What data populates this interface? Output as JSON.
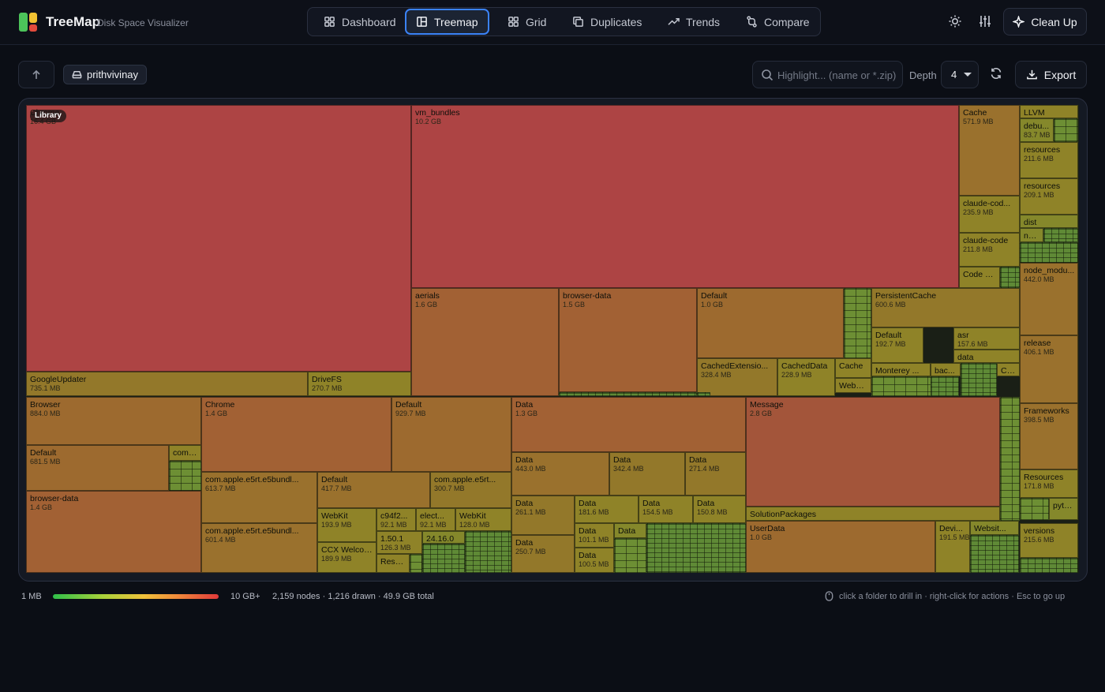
{
  "header": {
    "brand": "TreeMap",
    "subtitle": "Disk Space Visualizer",
    "nav": [
      {
        "label": "Dashboard",
        "icon": "dashboard-icon"
      },
      {
        "label": "Treemap",
        "icon": "treemap-icon",
        "active": true
      },
      {
        "label": "Grid",
        "icon": "grid-icon"
      },
      {
        "label": "Duplicates",
        "icon": "duplicates-icon"
      },
      {
        "label": "Trends",
        "icon": "trends-icon"
      },
      {
        "label": "Compare",
        "icon": "compare-icon"
      }
    ],
    "cleanup_label": "Clean Up"
  },
  "toolbar": {
    "breadcrumb": "prithvivinay",
    "search_placeholder": "Highlight... (name or *.zip)",
    "depth_label": "Depth",
    "depth_value": "4",
    "export_label": "Export"
  },
  "treemap": {
    "root_badge": "Library",
    "cells": [
      {
        "name": "Chrome",
        "size": "16.4 GB",
        "tone": "c-red"
      },
      {
        "name": "vm_bundles",
        "size": "10.2 GB",
        "tone": "c-red"
      },
      {
        "name": "GoogleUpdater",
        "size": "735.1 MB",
        "tone": "c-ol"
      },
      {
        "name": "DriveFS",
        "size": "270.7 MB",
        "tone": "c-ye"
      },
      {
        "name": "aerials",
        "size": "1.6 GB",
        "tone": "c-or"
      },
      {
        "name": "browser-data",
        "size": "1.5 GB",
        "tone": "c-or"
      },
      {
        "name": "Default",
        "size": "1.0 GB",
        "tone": "c-or2"
      },
      {
        "name": "PersistentCache",
        "size": "600.6 MB",
        "tone": "c-ol"
      },
      {
        "name": "Default",
        "size": "192.7 MB",
        "tone": "c-ye"
      },
      {
        "name": "asr",
        "size": "157.6 MB",
        "tone": "c-ye"
      },
      {
        "name": "data",
        "size": "",
        "tone": "c-ye"
      },
      {
        "name": "CachedExtensio...",
        "size": "328.4 MB",
        "tone": "c-ol"
      },
      {
        "name": "CachedData",
        "size": "228.9 MB",
        "tone": "c-ye"
      },
      {
        "name": "Cache",
        "size": "",
        "tone": "c-ye"
      },
      {
        "name": "WebSt...",
        "size": "",
        "tone": "c-ye"
      },
      {
        "name": "Monterey ...",
        "size": "",
        "tone": "c-ye"
      },
      {
        "name": "bac...",
        "size": "",
        "tone": "c-ye"
      },
      {
        "name": "Cache",
        "size": "",
        "tone": "c-ye"
      },
      {
        "name": "Cache",
        "size": "571.9 MB",
        "tone": "c-ob"
      },
      {
        "name": "claude-cod...",
        "size": "235.9 MB",
        "tone": "c-ye"
      },
      {
        "name": "claude-code",
        "size": "211.8 MB",
        "tone": "c-ye"
      },
      {
        "name": "Code C...",
        "size": "",
        "tone": "c-ye"
      },
      {
        "name": "LLVM",
        "size": "",
        "tone": "c-ye"
      },
      {
        "name": "debu...",
        "size": "83.7 MB",
        "tone": "c-yg"
      },
      {
        "name": "resources",
        "size": "211.6 MB",
        "tone": "c-ye"
      },
      {
        "name": "resources",
        "size": "209.1 MB",
        "tone": "c-ye"
      },
      {
        "name": "dist",
        "size": "",
        "tone": "c-yg"
      },
      {
        "name": "node...",
        "size": "",
        "tone": "c-yg"
      },
      {
        "name": "node_modu...",
        "size": "442.0 MB",
        "tone": "c-ob"
      },
      {
        "name": "release",
        "size": "406.1 MB",
        "tone": "c-ob"
      },
      {
        "name": "Browser",
        "size": "884.0 MB",
        "tone": "c-or2"
      },
      {
        "name": "Default",
        "size": "681.5 MB",
        "tone": "c-or2"
      },
      {
        "name": "comp...",
        "size": "",
        "tone": "c-ye"
      },
      {
        "name": "browser-data",
        "size": "1.4 GB",
        "tone": "c-or"
      },
      {
        "name": "Chrome",
        "size": "1.4 GB",
        "tone": "c-or"
      },
      {
        "name": "Default",
        "size": "929.7 MB",
        "tone": "c-or2"
      },
      {
        "name": "com.apple.e5rt.e5bundl...",
        "size": "613.7 MB",
        "tone": "c-ob"
      },
      {
        "name": "Default",
        "size": "417.7 MB",
        "tone": "c-ob"
      },
      {
        "name": "com.apple.e5rt...",
        "size": "300.7 MB",
        "tone": "c-ol"
      },
      {
        "name": "com.apple.e5rt.e5bundl...",
        "size": "601.4 MB",
        "tone": "c-ob"
      },
      {
        "name": "WebKit",
        "size": "193.9 MB",
        "tone": "c-ye"
      },
      {
        "name": "c94f2...",
        "size": "92.1 MB",
        "tone": "c-ye"
      },
      {
        "name": "elect...",
        "size": "92.1 MB",
        "tone": "c-ye"
      },
      {
        "name": "WebKit",
        "size": "128.0 MB",
        "tone": "c-ye"
      },
      {
        "name": "1.50.1",
        "size": "126.3 MB",
        "tone": "c-ye"
      },
      {
        "name": "24.16.0",
        "size": "",
        "tone": "c-yg"
      },
      {
        "name": "CCX Welcome",
        "size": "189.9 MB",
        "tone": "c-ye"
      },
      {
        "name": "Reso...",
        "size": "",
        "tone": "c-ye"
      },
      {
        "name": "Data",
        "size": "1.3 GB",
        "tone": "c-or"
      },
      {
        "name": "Data",
        "size": "443.0 MB",
        "tone": "c-ob"
      },
      {
        "name": "Data",
        "size": "342.4 MB",
        "tone": "c-ol"
      },
      {
        "name": "Data",
        "size": "271.4 MB",
        "tone": "c-ol"
      },
      {
        "name": "Data",
        "size": "261.1 MB",
        "tone": "c-ol"
      },
      {
        "name": "Data",
        "size": "181.6 MB",
        "tone": "c-ye"
      },
      {
        "name": "Data",
        "size": "154.5 MB",
        "tone": "c-ye"
      },
      {
        "name": "Data",
        "size": "150.8 MB",
        "tone": "c-ye"
      },
      {
        "name": "Data",
        "size": "250.7 MB",
        "tone": "c-ol"
      },
      {
        "name": "Data",
        "size": "101.1 MB",
        "tone": "c-ye"
      },
      {
        "name": "Data",
        "size": "100.5 MB",
        "tone": "c-ye"
      },
      {
        "name": "Data",
        "size": "",
        "tone": "c-yg"
      },
      {
        "name": "Message",
        "size": "2.8 GB",
        "tone": "c-ro"
      },
      {
        "name": "SolutionPackages",
        "size": "",
        "tone": "c-ye"
      },
      {
        "name": "UserData",
        "size": "1.0 GB",
        "tone": "c-or2"
      },
      {
        "name": "Devi...",
        "size": "191.5 MB",
        "tone": "c-ye"
      },
      {
        "name": "Websit...",
        "size": "",
        "tone": "c-yg"
      },
      {
        "name": "Frameworks",
        "size": "398.5 MB",
        "tone": "c-ob"
      },
      {
        "name": "Resources",
        "size": "171.8 MB",
        "tone": "c-ye"
      },
      {
        "name": "pyth...",
        "size": "",
        "tone": "c-yg"
      },
      {
        "name": "versions",
        "size": "215.6 MB",
        "tone": "c-ye"
      }
    ]
  },
  "footer": {
    "legend_min": "1 MB",
    "legend_max": "10 GB+",
    "stats": "2,159 nodes · 1,216 drawn · 49.9 GB total",
    "hint": "click a folder to drill in · right-click for actions · Esc to go up"
  }
}
